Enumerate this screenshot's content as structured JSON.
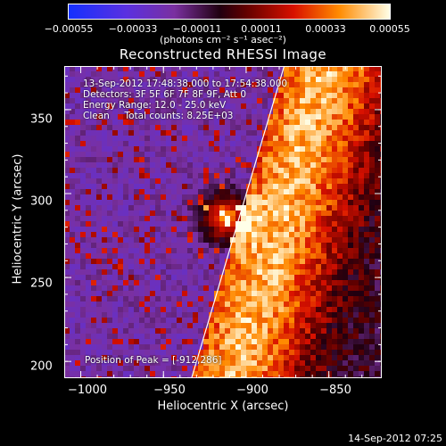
{
  "chart_data": {
    "type": "heatmap",
    "title": "Reconstructed RHESSI Image",
    "xlabel": "Heliocentric X (arcsec)",
    "ylabel": "Heliocentric Y (arcsec)",
    "xlim": [
      -1010,
      -818
    ],
    "ylim": [
      190,
      376
    ],
    "xticks": [
      {
        "value": -1000,
        "label": "−1000"
      },
      {
        "value": -950,
        "label": "−950"
      },
      {
        "value": -900,
        "label": "−900"
      },
      {
        "value": -850,
        "label": "−850"
      }
    ],
    "yticks": [
      {
        "value": 200,
        "label": "200"
      },
      {
        "value": 250,
        "label": "250"
      },
      {
        "value": 300,
        "label": "300"
      },
      {
        "value": 350,
        "label": "350"
      }
    ],
    "colorbar": {
      "range": [
        -0.00055,
        0.00055
      ],
      "ticks": [
        "−0.00055",
        "−0.00033",
        "−0.00011",
        "0.00011",
        "0.00033",
        "0.00055"
      ],
      "unit": "(photons cm⁻² s⁻¹ asec⁻²)"
    },
    "annotations": [
      "13-Sep-2012 17:48:38.000 to 17:54:38.000",
      "Detectors: 3F 5F 6F 7F 8F 9F, Att 0",
      "Energy Range: 12.0 - 25.0 keV",
      "Clean     Total counts: 8.25E+03"
    ],
    "peak_label": "Position of Peak = [-912,286]",
    "limb_line": {
      "x": [
        -933,
        -877
      ],
      "y": [
        190,
        376
      ]
    }
  },
  "footer": "14-Sep-2012 07:25",
  "colors": {
    "background": "#000000",
    "text": "#ffffff"
  }
}
